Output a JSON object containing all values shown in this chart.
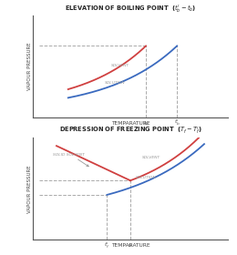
{
  "top_title": "ELEVATION OF BOILING POINT  ($t_b^{\\prime} - t_b$)",
  "bottom_title": "DEPRESSION OF FREEZING POINT  ($T_f - T_f^{\\prime}$)",
  "xlabel": "TEMPARATURE",
  "ylabel": "VAPOUR PRESSURE",
  "solvent_color": "#d04040",
  "solution_color": "#3a6abf",
  "solid_color": "#d04040",
  "dashed_color": "#aaaaaa",
  "label_color": "#999999",
  "bg_color": "#ffffff"
}
